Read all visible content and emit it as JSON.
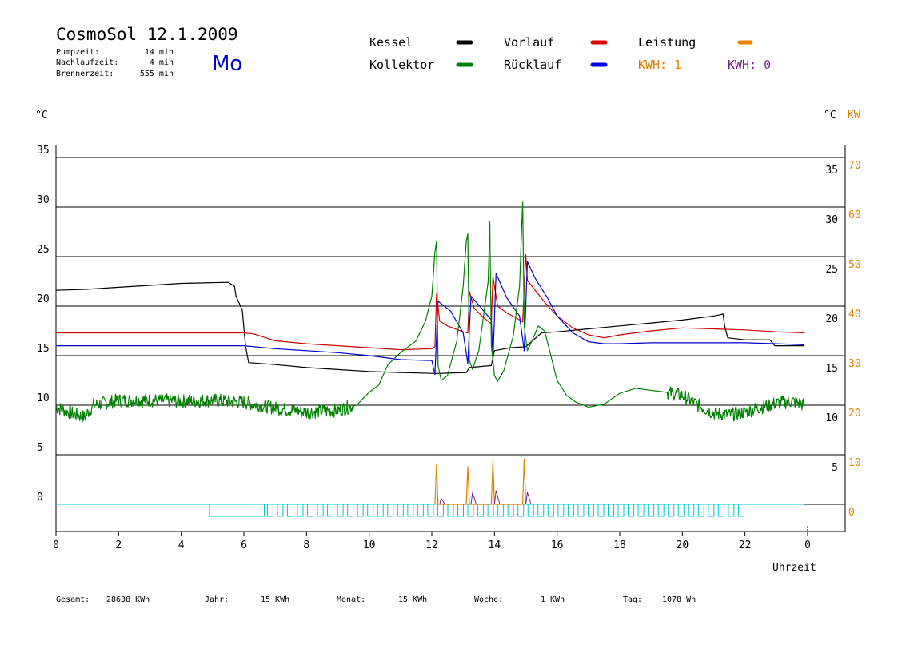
{
  "header": {
    "title": "CosmoSol 12.1.2009",
    "day": "Mo",
    "pump_label": "Pumpzeit:",
    "pump_value": "14 min",
    "after_label": "Nachlaufzeit:",
    "after_value": "4 min",
    "burner_label": "Brennerzeit:",
    "burner_value": "555 min"
  },
  "legend": [
    {
      "label": "Kessel",
      "color": "#000000"
    },
    {
      "label": "Kollektor",
      "color": "#008000"
    },
    {
      "label": "Vorlauf",
      "color": "#e00000"
    },
    {
      "label": "Rücklauf",
      "color": "#0000e0"
    },
    {
      "label": "Leistung",
      "color": "#f08000"
    }
  ],
  "kwh": [
    {
      "label": "KWH: 1",
      "color": "#e08000"
    },
    {
      "label": "KWH: 0",
      "color": "#7a2090"
    }
  ],
  "axes": {
    "left_unit": "°C",
    "right_unit": "°C",
    "right_unit2": "KW",
    "x_title": "Uhrzeit",
    "left_ticks": [
      "35",
      "30",
      "25",
      "20",
      "15",
      "10",
      "5",
      "0"
    ],
    "right_ticks_c": [
      "35",
      "30",
      "25",
      "20",
      "15",
      "10",
      "5"
    ],
    "right_ticks_kw": [
      "70",
      "60",
      "50",
      "40",
      "30",
      "20",
      "10",
      "0"
    ],
    "x_ticks": [
      "0",
      "2",
      "4",
      "6",
      "8",
      "10",
      "12",
      "14",
      "16",
      "18",
      "20",
      "22",
      "0"
    ]
  },
  "footer": [
    {
      "label": "Gesamt:",
      "value": "28638 KWh"
    },
    {
      "label": "Jahr:",
      "value": "15 KWh"
    },
    {
      "label": "Monat:",
      "value": "15 KWh"
    },
    {
      "label": "Woche:",
      "value": "1 KWh"
    },
    {
      "label": "Tag:",
      "value": "1078 Wh"
    }
  ],
  "chart_data": {
    "type": "line",
    "x_unit": "hour",
    "xlim": [
      0,
      24
    ],
    "ylim": [
      -2,
      36
    ],
    "y2lim": [
      0,
      70
    ],
    "grid": true,
    "series": [
      {
        "name": "Kessel",
        "color": "#000000",
        "points": [
          [
            0,
            21.6
          ],
          [
            1,
            21.7
          ],
          [
            2,
            21.9
          ],
          [
            3,
            22.1
          ],
          [
            4,
            22.3
          ],
          [
            5.5,
            22.4
          ],
          [
            5.7,
            22.0
          ],
          [
            5.75,
            21.0
          ],
          [
            5.85,
            20.3
          ],
          [
            5.95,
            19.6
          ],
          [
            6.05,
            16.0
          ],
          [
            6.15,
            14.3
          ],
          [
            7,
            14.1
          ],
          [
            8,
            13.8
          ],
          [
            9,
            13.6
          ],
          [
            10,
            13.4
          ],
          [
            11,
            13.3
          ],
          [
            12.1,
            13.2
          ],
          [
            12.2,
            13.2
          ],
          [
            13.1,
            13.3
          ],
          [
            13.2,
            13.8
          ],
          [
            13.9,
            14.0
          ],
          [
            14.0,
            15.5
          ],
          [
            14.5,
            15.8
          ],
          [
            15.0,
            15.9
          ],
          [
            15.5,
            17.3
          ],
          [
            16,
            17.4
          ],
          [
            17,
            17.7
          ],
          [
            18,
            18.0
          ],
          [
            19,
            18.3
          ],
          [
            20,
            18.6
          ],
          [
            21,
            19.0
          ],
          [
            21.3,
            19.2
          ],
          [
            21.35,
            18.0
          ],
          [
            21.45,
            16.8
          ],
          [
            22,
            16.6
          ],
          [
            22.8,
            16.6
          ],
          [
            22.95,
            16.0
          ],
          [
            23.9,
            16.0
          ]
        ]
      },
      {
        "name": "Vorlauf",
        "color": "#d00000",
        "points": [
          [
            0,
            17.3
          ],
          [
            2,
            17.3
          ],
          [
            4,
            17.3
          ],
          [
            6,
            17.3
          ],
          [
            6.3,
            17.2
          ],
          [
            7,
            16.5
          ],
          [
            8,
            16.2
          ],
          [
            9,
            16.0
          ],
          [
            10,
            15.8
          ],
          [
            11,
            15.6
          ],
          [
            12.0,
            15.7
          ],
          [
            12.1,
            15.9
          ],
          [
            12.15,
            21.3
          ],
          [
            12.25,
            18.5
          ],
          [
            12.5,
            18.0
          ],
          [
            13.0,
            17.4
          ],
          [
            13.15,
            17.3
          ],
          [
            13.2,
            21.5
          ],
          [
            13.35,
            19.8
          ],
          [
            13.6,
            19.0
          ],
          [
            13.9,
            18.2
          ],
          [
            13.95,
            23.0
          ],
          [
            14.1,
            20.0
          ],
          [
            14.4,
            19.3
          ],
          [
            14.7,
            18.8
          ],
          [
            14.9,
            18.4
          ],
          [
            15.0,
            25.2
          ],
          [
            15.05,
            22.6
          ],
          [
            15.3,
            21.6
          ],
          [
            15.6,
            20.4
          ],
          [
            16,
            19.0
          ],
          [
            16.5,
            17.8
          ],
          [
            17,
            17.1
          ],
          [
            17.5,
            16.8
          ],
          [
            18,
            17.1
          ],
          [
            19,
            17.5
          ],
          [
            20,
            17.8
          ],
          [
            21,
            17.7
          ],
          [
            22,
            17.6
          ],
          [
            23,
            17.4
          ],
          [
            23.9,
            17.3
          ]
        ]
      },
      {
        "name": "Rücklauf",
        "color": "#0000d0",
        "points": [
          [
            0,
            16.0
          ],
          [
            2,
            16.0
          ],
          [
            4,
            16.0
          ],
          [
            6,
            16.0
          ],
          [
            7,
            15.7
          ],
          [
            8,
            15.5
          ],
          [
            9,
            15.3
          ],
          [
            10,
            15.0
          ],
          [
            11,
            14.6
          ],
          [
            12.0,
            14.5
          ],
          [
            12.1,
            13.1
          ],
          [
            12.2,
            20.5
          ],
          [
            12.6,
            19.5
          ],
          [
            13.0,
            17.3
          ],
          [
            13.15,
            14.2
          ],
          [
            13.25,
            21.0
          ],
          [
            13.5,
            20.1
          ],
          [
            13.9,
            18.6
          ],
          [
            13.95,
            14.5
          ],
          [
            14.05,
            23.3
          ],
          [
            14.4,
            20.8
          ],
          [
            14.8,
            19.0
          ],
          [
            14.95,
            15.5
          ],
          [
            15.05,
            24.5
          ],
          [
            15.3,
            22.8
          ],
          [
            15.7,
            20.8
          ],
          [
            16,
            19.0
          ],
          [
            16.5,
            17.3
          ],
          [
            17,
            16.4
          ],
          [
            17.5,
            16.2
          ],
          [
            18,
            16.2
          ],
          [
            19,
            16.3
          ],
          [
            20,
            16.3
          ],
          [
            21,
            16.3
          ],
          [
            22,
            16.3
          ],
          [
            23,
            16.2
          ],
          [
            23.9,
            16.1
          ]
        ]
      },
      {
        "name": "Kollektor",
        "color": "#008000",
        "points": [
          [
            0,
            9.8
          ],
          [
            0.5,
            9.2
          ],
          [
            0.9,
            8.8
          ],
          [
            1.2,
            10.0
          ],
          [
            2,
            10.5
          ],
          [
            3,
            10.5
          ],
          [
            4,
            10.4
          ],
          [
            5,
            10.5
          ],
          [
            6,
            10.3
          ],
          [
            7,
            9.7
          ],
          [
            8,
            9.3
          ],
          [
            9,
            9.5
          ],
          [
            9.6,
            10.0
          ],
          [
            10,
            11.3
          ],
          [
            10.3,
            12.0
          ],
          [
            10.6,
            14.1
          ],
          [
            11,
            15.3
          ],
          [
            11.5,
            16.5
          ],
          [
            11.8,
            18.5
          ],
          [
            12.0,
            21.0
          ],
          [
            12.1,
            25.5
          ],
          [
            12.15,
            26.5
          ],
          [
            12.2,
            14.0
          ],
          [
            12.3,
            12.5
          ],
          [
            12.5,
            13.0
          ],
          [
            12.8,
            16.5
          ],
          [
            13.0,
            22.0
          ],
          [
            13.1,
            26.5
          ],
          [
            13.15,
            27.3
          ],
          [
            13.2,
            14.5
          ],
          [
            13.3,
            13.6
          ],
          [
            13.5,
            15.5
          ],
          [
            13.8,
            22.5
          ],
          [
            13.85,
            28.5
          ],
          [
            13.9,
            16.0
          ],
          [
            14.0,
            13.0
          ],
          [
            14.1,
            12.4
          ],
          [
            14.3,
            13.5
          ],
          [
            14.6,
            17.0
          ],
          [
            14.8,
            22.0
          ],
          [
            14.9,
            30.5
          ],
          [
            14.95,
            18.0
          ],
          [
            15.05,
            15.5
          ],
          [
            15.2,
            16.5
          ],
          [
            15.4,
            18.0
          ],
          [
            15.6,
            17.5
          ],
          [
            15.8,
            15.0
          ],
          [
            16,
            12.5
          ],
          [
            16.3,
            11.0
          ],
          [
            16.6,
            10.3
          ],
          [
            17,
            9.8
          ],
          [
            17.5,
            10.1
          ],
          [
            18,
            11.2
          ],
          [
            18.5,
            11.7
          ],
          [
            19,
            11.5
          ],
          [
            19.5,
            11.3
          ],
          [
            20,
            11.0
          ],
          [
            20.5,
            10.0
          ],
          [
            21,
            9.2
          ],
          [
            21.5,
            9.0
          ],
          [
            22,
            9.3
          ],
          [
            22.5,
            9.8
          ],
          [
            23,
            10.2
          ],
          [
            23.5,
            10.4
          ],
          [
            23.9,
            10.0
          ]
        ]
      },
      {
        "name": "Leistung",
        "color": "#e08000",
        "points": [
          [
            12.1,
            0
          ],
          [
            12.15,
            4.1
          ],
          [
            12.2,
            0
          ],
          [
            13.1,
            0
          ],
          [
            13.15,
            3.8
          ],
          [
            13.2,
            0
          ],
          [
            13.9,
            0
          ],
          [
            13.95,
            4.4
          ],
          [
            14.0,
            0
          ],
          [
            14.9,
            0
          ],
          [
            14.95,
            4.6
          ],
          [
            15.0,
            0
          ]
        ]
      },
      {
        "name": "Pumpe",
        "color": "#00c8d0",
        "points": [
          [
            0,
            0
          ],
          [
            23.9,
            0
          ]
        ]
      }
    ]
  }
}
